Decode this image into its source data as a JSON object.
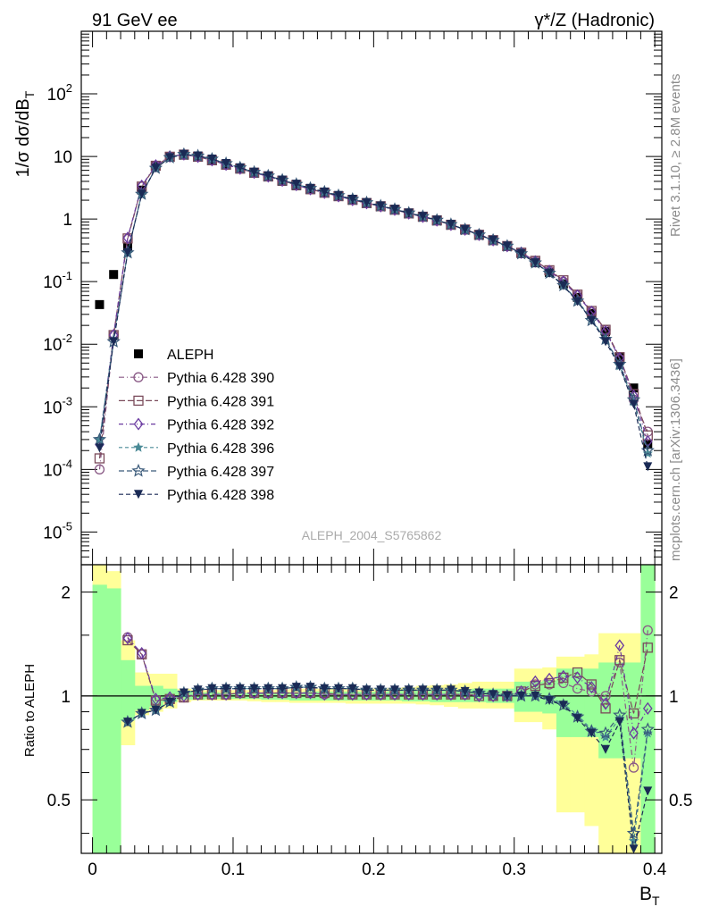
{
  "header": {
    "left_title": "91 GeV ee",
    "right_title": "γ*/Z (Hadronic)"
  },
  "side_text": {
    "rivet": "Rivet 3.1.10, ≥ 2.8M events",
    "mcplots": "mcplots.cern.ch [arXiv:1306.3436]"
  },
  "watermark": "ALEPH_2004_S5765862",
  "colors": {
    "data": "#000000",
    "p390": "#8a5a86",
    "p391": "#7a4a5a",
    "p392": "#6a3aa0",
    "p396": "#4a8a96",
    "p397": "#3a5a7a",
    "p398": "#1a2a55",
    "band_yellow": "#ffff99",
    "band_green": "#99ff99"
  },
  "chart_data": [
    {
      "type": "scatter",
      "panel": "main",
      "ylabel": "1/σ dσ/dB_T",
      "xlabel": "",
      "yscale": "log",
      "ylim": [
        3e-06,
        1000
      ],
      "xlim": [
        -0.008,
        0.405
      ],
      "y_tick_labels": [
        "10^-5",
        "10^-4",
        "10^-3",
        "10^-2",
        "10^-1",
        "1",
        "10",
        "10^2"
      ],
      "legend_position": "left-middle",
      "x": [
        0.005,
        0.015,
        0.025,
        0.035,
        0.045,
        0.055,
        0.065,
        0.075,
        0.085,
        0.095,
        0.105,
        0.115,
        0.125,
        0.135,
        0.145,
        0.155,
        0.165,
        0.175,
        0.185,
        0.195,
        0.205,
        0.215,
        0.225,
        0.235,
        0.245,
        0.255,
        0.265,
        0.275,
        0.285,
        0.295,
        0.305,
        0.315,
        0.325,
        0.335,
        0.345,
        0.355,
        0.365,
        0.375,
        0.385,
        0.395
      ],
      "series": [
        {
          "name": "ALEPH",
          "marker": "square-filled",
          "values": [
            0.043,
            0.13,
            0.35,
            2.9,
            7.0,
            10.0,
            10.5,
            9.7,
            8.6,
            7.3,
            6.3,
            5.4,
            4.7,
            4.0,
            3.4,
            2.95,
            2.6,
            2.3,
            2.0,
            1.78,
            1.58,
            1.4,
            1.22,
            1.08,
            0.94,
            0.8,
            0.67,
            0.56,
            0.46,
            0.37,
            0.28,
            0.2,
            0.14,
            0.092,
            0.056,
            0.031,
            0.016,
            0.0063,
            0.002,
            0.00025
          ]
        },
        {
          "name": "Pythia 6.428 390",
          "marker": "circle-open",
          "values": [
            0.0001,
            0.014,
            0.48,
            3.3,
            7.1,
            9.9,
            10.7,
            9.9,
            8.7,
            7.4,
            6.4,
            5.5,
            4.8,
            4.1,
            3.5,
            3.0,
            2.63,
            2.32,
            2.02,
            1.8,
            1.6,
            1.41,
            1.23,
            1.09,
            0.95,
            0.81,
            0.68,
            0.57,
            0.46,
            0.37,
            0.29,
            0.215,
            0.15,
            0.1,
            0.061,
            0.033,
            0.017,
            0.0058,
            0.0013,
            0.0004
          ]
        },
        {
          "name": "Pythia 6.428 391",
          "marker": "square-open",
          "values": [
            0.00015,
            0.014,
            0.49,
            3.3,
            7.1,
            9.9,
            10.7,
            9.9,
            8.7,
            7.4,
            6.4,
            5.5,
            4.8,
            4.1,
            3.5,
            3.0,
            2.64,
            2.32,
            2.03,
            1.8,
            1.6,
            1.41,
            1.23,
            1.09,
            0.95,
            0.81,
            0.68,
            0.56,
            0.46,
            0.37,
            0.29,
            0.215,
            0.152,
            0.105,
            0.062,
            0.034,
            0.017,
            0.0062,
            0.0016,
            0.00035
          ]
        },
        {
          "name": "Pythia 6.428 392",
          "marker": "diamond-open",
          "values": [
            0.00025,
            0.014,
            0.5,
            3.4,
            7.2,
            10.0,
            10.8,
            9.9,
            8.7,
            7.4,
            6.4,
            5.5,
            4.8,
            4.1,
            3.5,
            3.0,
            2.63,
            2.32,
            2.02,
            1.8,
            1.6,
            1.41,
            1.23,
            1.09,
            0.95,
            0.81,
            0.68,
            0.56,
            0.46,
            0.37,
            0.29,
            0.21,
            0.148,
            0.1,
            0.06,
            0.033,
            0.016,
            0.006,
            0.0015,
            0.00028
          ]
        },
        {
          "name": "Pythia 6.428 396",
          "marker": "star-filled",
          "values": [
            0.0003,
            0.012,
            0.29,
            2.5,
            6.5,
            9.6,
            10.8,
            10.2,
            9.1,
            7.7,
            6.6,
            5.6,
            4.9,
            4.2,
            3.6,
            3.1,
            2.7,
            2.38,
            2.07,
            1.83,
            1.62,
            1.43,
            1.25,
            1.1,
            0.96,
            0.82,
            0.68,
            0.56,
            0.46,
            0.37,
            0.28,
            0.2,
            0.138,
            0.088,
            0.05,
            0.025,
            0.012,
            0.0045,
            0.0012,
            0.00018
          ]
        },
        {
          "name": "Pythia 6.428 397",
          "marker": "star-open",
          "values": [
            0.0003,
            0.011,
            0.29,
            2.5,
            6.5,
            9.6,
            10.8,
            10.2,
            9.1,
            7.7,
            6.6,
            5.6,
            4.9,
            4.2,
            3.6,
            3.1,
            2.7,
            2.38,
            2.07,
            1.83,
            1.62,
            1.43,
            1.25,
            1.1,
            0.96,
            0.82,
            0.68,
            0.56,
            0.46,
            0.37,
            0.28,
            0.2,
            0.137,
            0.087,
            0.049,
            0.024,
            0.012,
            0.0048,
            0.0013,
            0.0002
          ]
        },
        {
          "name": "Pythia 6.428 398",
          "marker": "triangle-down-filled",
          "values": [
            0.00022,
            0.011,
            0.29,
            2.5,
            6.5,
            9.6,
            10.8,
            10.2,
            9.1,
            7.7,
            6.6,
            5.6,
            4.9,
            4.2,
            3.6,
            3.1,
            2.7,
            2.38,
            2.07,
            1.83,
            1.62,
            1.43,
            1.25,
            1.1,
            0.96,
            0.82,
            0.68,
            0.56,
            0.46,
            0.37,
            0.28,
            0.2,
            0.136,
            0.086,
            0.048,
            0.024,
            0.011,
            0.0044,
            0.0011,
            0.00011
          ]
        }
      ]
    },
    {
      "type": "scatter",
      "panel": "ratio",
      "ylabel": "Ratio to ALEPH",
      "xlabel": "B_T",
      "yscale": "log",
      "ylim": [
        0.35,
        2.4
      ],
      "xlim": [
        -0.008,
        0.405
      ],
      "y_tick_labels": [
        "0.5",
        "1",
        "2"
      ],
      "x_tick_labels": [
        "0",
        "0.1",
        "0.2",
        "0.3",
        "0.4"
      ],
      "reference_line": 1,
      "bands": {
        "x_edges": [
          0.0,
          0.01,
          0.02,
          0.03,
          0.04,
          0.05,
          0.06,
          0.07,
          0.08,
          0.09,
          0.1,
          0.11,
          0.12,
          0.13,
          0.14,
          0.15,
          0.16,
          0.17,
          0.18,
          0.19,
          0.2,
          0.21,
          0.22,
          0.23,
          0.24,
          0.25,
          0.26,
          0.27,
          0.28,
          0.29,
          0.3,
          0.31,
          0.32,
          0.33,
          0.34,
          0.35,
          0.36,
          0.37,
          0.38,
          0.39,
          0.4
        ],
        "yellow_low": [
          0.1,
          0.1,
          0.72,
          0.88,
          0.9,
          0.92,
          0.96,
          0.97,
          0.97,
          0.97,
          0.97,
          0.965,
          0.96,
          0.96,
          0.955,
          0.955,
          0.955,
          0.955,
          0.95,
          0.95,
          0.95,
          0.95,
          0.95,
          0.945,
          0.94,
          0.93,
          0.92,
          0.92,
          0.92,
          0.92,
          0.84,
          0.84,
          0.8,
          0.46,
          0.46,
          0.42,
          0.3,
          0.3,
          0.3,
          0.3
        ],
        "yellow_high": [
          2.5,
          2.3,
          1.45,
          1.17,
          1.16,
          1.16,
          1.05,
          1.04,
          1.04,
          1.04,
          1.04,
          1.04,
          1.04,
          1.045,
          1.05,
          1.05,
          1.05,
          1.05,
          1.05,
          1.05,
          1.05,
          1.055,
          1.06,
          1.07,
          1.075,
          1.08,
          1.09,
          1.1,
          1.1,
          1.1,
          1.2,
          1.2,
          1.21,
          1.3,
          1.3,
          1.32,
          1.52,
          1.52,
          1.52,
          2.5
        ],
        "green_low": [
          0.1,
          0.1,
          0.85,
          0.91,
          0.93,
          0.96,
          0.975,
          0.975,
          0.98,
          0.98,
          0.98,
          0.98,
          0.975,
          0.975,
          0.97,
          0.97,
          0.97,
          0.97,
          0.97,
          0.97,
          0.97,
          0.97,
          0.965,
          0.965,
          0.96,
          0.96,
          0.96,
          0.96,
          0.955,
          0.955,
          0.9,
          0.9,
          0.89,
          0.76,
          0.76,
          0.76,
          0.66,
          0.66,
          0.66,
          0.1
        ],
        "green_high": [
          2.1,
          2.05,
          1.27,
          1.07,
          1.07,
          1.05,
          1.03,
          1.025,
          1.025,
          1.02,
          1.02,
          1.02,
          1.02,
          1.025,
          1.025,
          1.03,
          1.03,
          1.03,
          1.03,
          1.03,
          1.03,
          1.035,
          1.035,
          1.035,
          1.04,
          1.04,
          1.045,
          1.05,
          1.05,
          1.05,
          1.1,
          1.1,
          1.11,
          1.2,
          1.2,
          1.2,
          1.25,
          1.25,
          1.25,
          2.5
        ]
      },
      "x": [
        0.005,
        0.015,
        0.025,
        0.035,
        0.045,
        0.055,
        0.065,
        0.075,
        0.085,
        0.095,
        0.105,
        0.115,
        0.125,
        0.135,
        0.145,
        0.155,
        0.165,
        0.175,
        0.185,
        0.195,
        0.205,
        0.215,
        0.225,
        0.235,
        0.245,
        0.255,
        0.265,
        0.275,
        0.285,
        0.295,
        0.305,
        0.315,
        0.325,
        0.335,
        0.345,
        0.355,
        0.365,
        0.375,
        0.385,
        0.395
      ],
      "series": [
        {
          "name": "Pythia 6.428 390",
          "marker": "circle-open",
          "values": [
            null,
            null,
            1.48,
            1.32,
            0.97,
            0.97,
            0.99,
            1.01,
            1.01,
            1.01,
            1.02,
            1.02,
            1.02,
            1.02,
            1.02,
            1.02,
            1.01,
            1.01,
            1.01,
            1.01,
            1.01,
            1.01,
            1.01,
            1.01,
            1.01,
            1.01,
            1.01,
            1.01,
            1.0,
            1.0,
            1.02,
            1.08,
            1.08,
            1.09,
            1.05,
            1.03,
            1.0,
            1.25,
            0.62,
            1.55
          ]
        },
        {
          "name": "Pythia 6.428 391",
          "marker": "square-open",
          "values": [
            null,
            null,
            1.45,
            1.32,
            0.97,
            0.98,
            0.99,
            1.01,
            1.01,
            1.01,
            1.02,
            1.02,
            1.02,
            1.02,
            1.02,
            1.02,
            1.02,
            1.01,
            1.01,
            1.01,
            1.01,
            1.01,
            1.01,
            1.01,
            1.01,
            1.01,
            1.01,
            1.0,
            1.0,
            1.0,
            1.03,
            1.07,
            1.09,
            1.13,
            1.17,
            1.08,
            0.92,
            1.27,
            0.89,
            1.38
          ]
        },
        {
          "name": "Pythia 6.428 392",
          "marker": "diamond-open",
          "values": [
            null,
            null,
            1.47,
            1.33,
            0.98,
            0.99,
            1.0,
            1.01,
            1.01,
            1.01,
            1.02,
            1.02,
            1.02,
            1.02,
            1.02,
            1.02,
            1.01,
            1.01,
            1.01,
            1.01,
            1.01,
            1.01,
            1.01,
            1.01,
            1.01,
            1.01,
            1.01,
            1.0,
            1.0,
            1.0,
            1.03,
            1.1,
            1.12,
            1.14,
            1.13,
            1.06,
            0.95,
            1.4,
            0.78,
            0.92
          ]
        },
        {
          "name": "Pythia 6.428 396",
          "marker": "star-filled",
          "values": [
            null,
            null,
            0.84,
            0.89,
            0.91,
            0.96,
            1.02,
            1.04,
            1.05,
            1.05,
            1.05,
            1.05,
            1.05,
            1.05,
            1.06,
            1.06,
            1.05,
            1.05,
            1.05,
            1.04,
            1.04,
            1.04,
            1.04,
            1.04,
            1.04,
            1.04,
            1.03,
            1.02,
            1.01,
            1.0,
            1.0,
            1.0,
            0.99,
            0.95,
            0.88,
            0.8,
            0.76,
            0.86,
            0.38,
            0.78
          ]
        },
        {
          "name": "Pythia 6.428 397",
          "marker": "star-open",
          "values": [
            null,
            null,
            0.84,
            0.89,
            0.91,
            0.96,
            1.02,
            1.04,
            1.05,
            1.05,
            1.05,
            1.05,
            1.05,
            1.05,
            1.06,
            1.06,
            1.05,
            1.05,
            1.05,
            1.04,
            1.04,
            1.04,
            1.04,
            1.04,
            1.04,
            1.04,
            1.03,
            1.02,
            1.01,
            1.0,
            1.0,
            1.0,
            0.98,
            0.94,
            0.87,
            0.79,
            0.78,
            0.88,
            0.4,
            0.8
          ]
        },
        {
          "name": "Pythia 6.428 398",
          "marker": "triangle-down-filled",
          "values": [
            null,
            null,
            0.84,
            0.89,
            0.91,
            0.96,
            1.02,
            1.04,
            1.05,
            1.05,
            1.05,
            1.05,
            1.05,
            1.05,
            1.06,
            1.06,
            1.05,
            1.05,
            1.05,
            1.04,
            1.04,
            1.04,
            1.04,
            1.04,
            1.04,
            1.04,
            1.03,
            1.02,
            1.01,
            1.0,
            1.0,
            1.0,
            0.97,
            0.94,
            0.86,
            0.78,
            0.7,
            0.84,
            0.36,
            0.53
          ]
        }
      ]
    }
  ]
}
